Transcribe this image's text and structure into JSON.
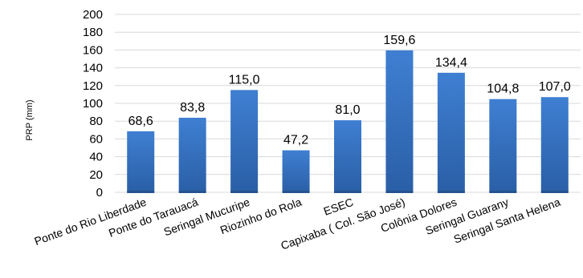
{
  "chart_data": {
    "type": "bar",
    "title": "",
    "xlabel": "",
    "ylabel": "PRP (mm)",
    "ylim": [
      0,
      200
    ],
    "yticks": [
      0,
      20,
      40,
      60,
      80,
      100,
      120,
      140,
      160,
      180,
      200
    ],
    "grid": true,
    "legend": "none",
    "bar_color": "#3a76c7",
    "bar_color_dark": "#24538f",
    "categories": [
      "Ponte do Rio Liberdade",
      "Ponte do Tarauacá",
      "Seringal Mucuripe",
      "Riozinho do Rola",
      "ESEC",
      "Capixaba ( Col. São José)",
      "Colônia Dolores",
      "Seringal Guarany",
      "Seringal Santa Helena"
    ],
    "values": [
      68.6,
      83.8,
      115.0,
      47.2,
      81.0,
      159.6,
      134.4,
      104.8,
      107.0
    ],
    "value_labels": [
      "68,6",
      "83,8",
      "115,0",
      "47,2",
      "81,0",
      "159,6",
      "134,4",
      "104,8",
      "107,0"
    ]
  }
}
